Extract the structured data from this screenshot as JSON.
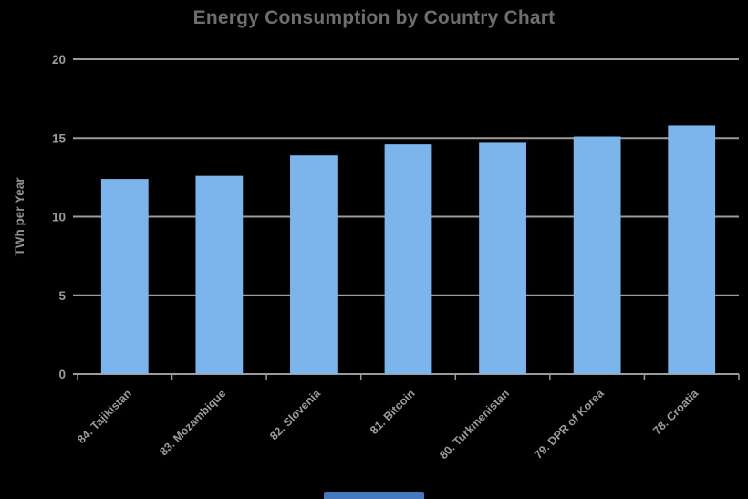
{
  "chart_data": {
    "type": "bar",
    "title": "Energy Consumption by Country Chart",
    "xlabel": "",
    "ylabel": "TWh per Year",
    "categories": [
      "84. Tajikistan",
      "83. Mozambique",
      "82. Slovenia",
      "81. Bitcoin",
      "80. Turkmenistan",
      "79. DPR of Korea",
      "78. Croatia"
    ],
    "values": [
      12.4,
      12.6,
      13.9,
      14.6,
      14.7,
      15.1,
      15.8
    ],
    "ylim": [
      0,
      20
    ],
    "yticks": [
      0,
      5,
      10,
      15,
      20
    ],
    "grid": true,
    "legend": false,
    "label_rotation_deg": -45,
    "colors": {
      "background": "#000000",
      "bar": "#7cb5ec",
      "grid": "#9b9b9b",
      "axis": "#9b9b9b",
      "tick_text": "#9a9a9a",
      "axis_title": "#8f8f8f",
      "title": "#6e6e6e",
      "bottom_strip": "#4579bd"
    }
  }
}
